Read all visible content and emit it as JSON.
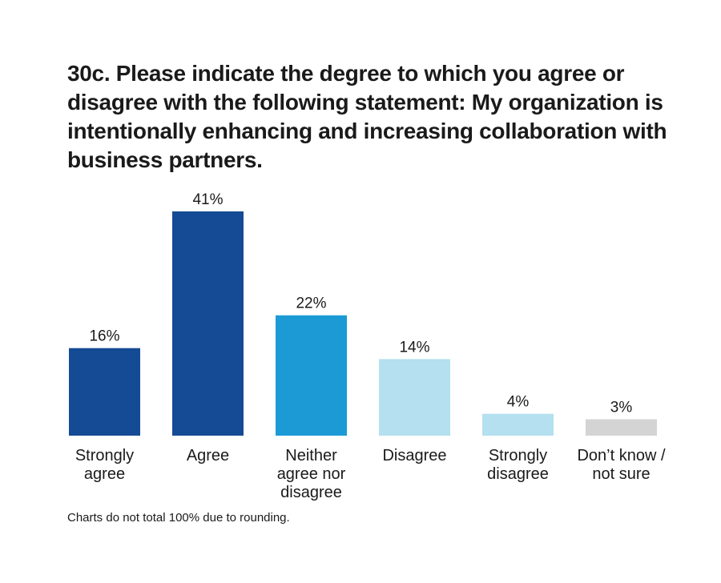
{
  "chart_data": {
    "type": "bar",
    "title": "30c. Please indicate the degree to which you agree or disagree with the following statement: My organization is intentionally enhancing and increasing collaboration with business partners.",
    "categories": [
      "Strongly agree",
      "Agree",
      "Neither agree nor disagree",
      "Disagree",
      "Strongly disagree",
      "Don’t know / not sure"
    ],
    "category_label_lines": [
      [
        "Strongly",
        "agree"
      ],
      [
        "Agree"
      ],
      [
        "Neither",
        "agree nor",
        "disagree"
      ],
      [
        "Disagree"
      ],
      [
        "Strongly",
        "disagree"
      ],
      [
        "Don’t know /",
        "not sure"
      ]
    ],
    "values": [
      16,
      41,
      22,
      14,
      4,
      3
    ],
    "value_labels": [
      "16%",
      "41%",
      "22%",
      "14%",
      "4%",
      "3%"
    ],
    "unit": "%",
    "bar_colors": [
      "#154a94",
      "#154a94",
      "#1b9ad6",
      "#b4e0f0",
      "#b4e0f0",
      "#d4d4d4"
    ],
    "grid": false,
    "axes_visible": false
  },
  "footnote": "Charts do not total 100% due to rounding."
}
